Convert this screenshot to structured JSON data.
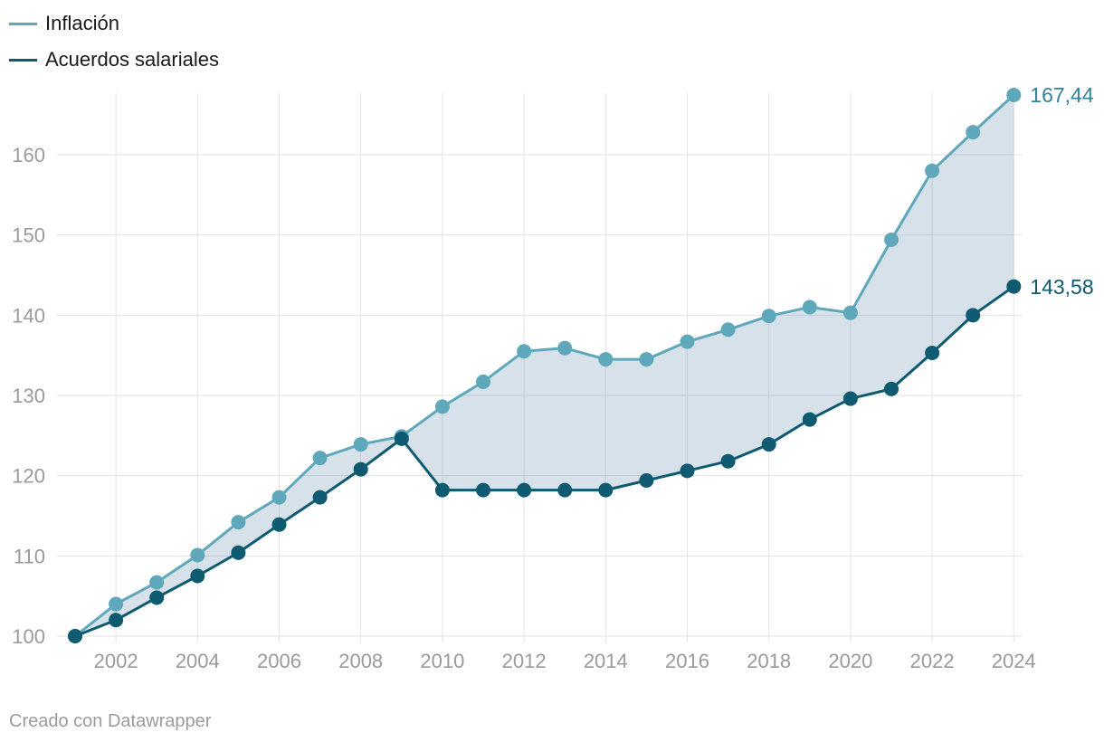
{
  "legend": {
    "items": [
      {
        "label": "Inflación",
        "color": "#5fa8bc"
      },
      {
        "label": "Acuerdos salariales",
        "color": "#0e5a70"
      }
    ]
  },
  "footer": {
    "attribution": "Creado con Datawrapper"
  },
  "chart_data": {
    "type": "line",
    "title": "",
    "xlabel": "",
    "ylabel": "",
    "x": [
      2001,
      2002,
      2003,
      2004,
      2005,
      2006,
      2007,
      2008,
      2009,
      2010,
      2011,
      2012,
      2013,
      2014,
      2015,
      2016,
      2017,
      2018,
      2019,
      2020,
      2021,
      2022,
      2023,
      2024
    ],
    "x_ticks": [
      2002,
      2004,
      2006,
      2008,
      2010,
      2012,
      2014,
      2016,
      2018,
      2020,
      2022,
      2024
    ],
    "y_ticks": [
      100,
      110,
      120,
      130,
      140,
      150,
      160
    ],
    "ylim": [
      100,
      168
    ],
    "grid": true,
    "legend_position": "top-left",
    "area_between_series": true,
    "area_color": "rgba(118,155,182,0.3)",
    "series": [
      {
        "name": "Inflación",
        "color": "#5fa8bc",
        "label_color": "#33819b",
        "end_label": "167,44",
        "values": [
          100,
          104.0,
          106.7,
          110.1,
          114.2,
          117.3,
          122.2,
          123.9,
          124.9,
          128.6,
          131.7,
          135.5,
          135.9,
          134.5,
          134.5,
          136.7,
          138.2,
          139.9,
          141.0,
          140.3,
          149.4,
          158.0,
          162.8,
          167.44
        ]
      },
      {
        "name": "Acuerdos salariales",
        "color": "#0e5a70",
        "label_color": "#0e5a70",
        "end_label": "143,58",
        "values": [
          100,
          102.0,
          104.8,
          107.5,
          110.4,
          113.9,
          117.3,
          120.8,
          124.6,
          118.2,
          118.2,
          118.2,
          118.2,
          118.2,
          119.4,
          120.6,
          121.8,
          123.9,
          127.0,
          129.6,
          130.8,
          135.3,
          140.0,
          143.58
        ]
      }
    ]
  }
}
